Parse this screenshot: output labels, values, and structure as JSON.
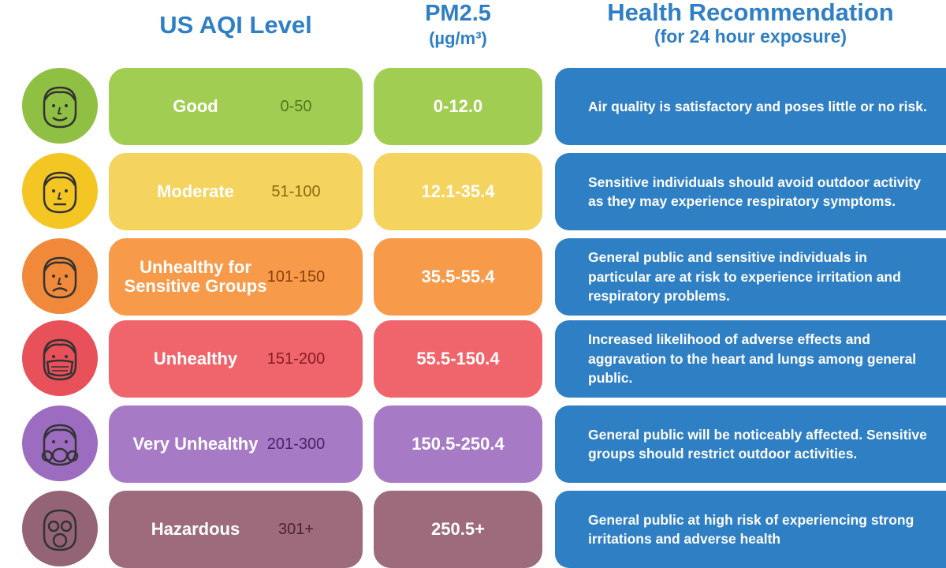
{
  "headers": {
    "aqi": "US AQI Level",
    "pm_title": "PM2.5",
    "pm_unit": "(µg/m³)",
    "health_title": "Health Recommendation",
    "health_sub": "(for 24 hour exposure)"
  },
  "colors": {
    "header_blue": "#2f7fc4",
    "health_bg": "#2f7fc4"
  },
  "rows": [
    {
      "face_icon": "happy-face-icon",
      "level": "Good",
      "range": "0-50",
      "pm": "0-12.0",
      "health": "Air quality is satisfactory and poses little or no risk.",
      "color": "#a1cd52",
      "face_color": "#8fc043",
      "range_color": "#4e7a1e"
    },
    {
      "face_icon": "neutral-face-icon",
      "level": "Moderate",
      "range": "51-100",
      "pm": "12.1-35.4",
      "health": "Sensitive individuals should avoid outdoor activity as they may experience respiratory symptoms.",
      "color": "#f4d35e",
      "face_color": "#f3c623",
      "range_color": "#8a6a10"
    },
    {
      "face_icon": "sad-face-icon",
      "level": "Unhealthy for Sensitive Groups",
      "range": "101-150",
      "pm": "35.5-55.4",
      "health": "General public and sensitive individuals in particular are at risk to experience irritation and respiratory problems.",
      "color": "#f79a4a",
      "face_color": "#f08a3a",
      "range_color": "#8a3e0c"
    },
    {
      "face_icon": "mask-face-icon",
      "level": "Unhealthy",
      "range": "151-200",
      "pm": "55.5-150.4",
      "health": "Increased likelihood of adverse effects and aggravation to the heart and lungs among general public.",
      "color": "#f0656b",
      "face_color": "#e8505a",
      "range_color": "#8a1a22"
    },
    {
      "face_icon": "respirator-face-icon",
      "level": "Very Unhealthy",
      "range": "201-300",
      "pm": "150.5-250.4",
      "health": "General public will be noticeably affected. Sensitive groups should restrict outdoor activities.",
      "color": "#a77ac6",
      "face_color": "#9c6cc0",
      "range_color": "#4a2266"
    },
    {
      "face_icon": "gas-mask-face-icon",
      "level": "Hazardous",
      "range": "301+",
      "pm": "250.5+",
      "health": "General public at high risk of experiencing strong irritations and adverse health",
      "color": "#9d6b7c",
      "face_color": "#946476",
      "range_color": "#4a2230"
    }
  ]
}
